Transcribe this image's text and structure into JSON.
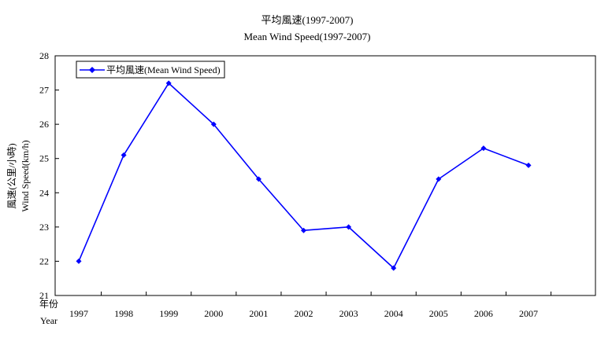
{
  "chart_data": {
    "type": "line",
    "title": "平均風速(1997-2007)",
    "subtitle": "Mean Wind Speed(1997-2007)",
    "ylabel_zh": "風速(公里/小時)",
    "ylabel_en": "Wind Speed(km/h)",
    "xlabel_zh": "年份",
    "xlabel_en": "Year",
    "ylim": [
      21,
      28
    ],
    "yticks": [
      21,
      22,
      23,
      24,
      25,
      26,
      27,
      28
    ],
    "categories": [
      "1997",
      "1998",
      "1999",
      "2000",
      "2001",
      "2002",
      "2003",
      "2004",
      "2005",
      "2006",
      "2007"
    ],
    "series": [
      {
        "name": "平均風速(Mean Wind Speed)",
        "color": "#0000ff",
        "marker": "diamond",
        "values": [
          22.0,
          25.1,
          27.2,
          26.0,
          24.4,
          22.9,
          23.0,
          21.8,
          24.4,
          25.3,
          24.8
        ]
      }
    ],
    "legend_position": "top-left",
    "grid": false
  }
}
